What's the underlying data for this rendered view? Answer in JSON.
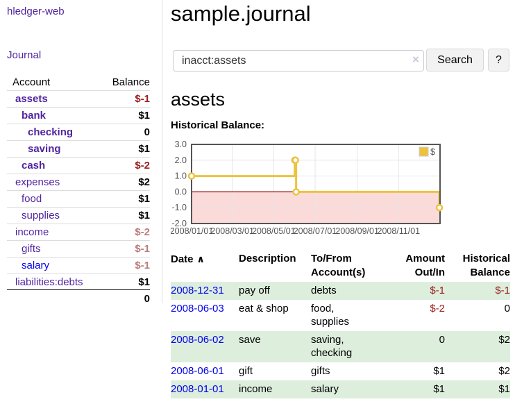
{
  "colors": {
    "link_purple": "#50249f",
    "link_blue": "#0000ee",
    "negative_strong": "#9b1c1c",
    "negative_soft": "#bb7b7b",
    "row_green": "#ddeedd",
    "series_gold": "#edc240"
  },
  "sidebar": {
    "app_title": "hledger-web",
    "nav": {
      "journal": "Journal"
    },
    "accounts": {
      "headers": {
        "account": "Account",
        "balance": "Balance"
      },
      "rows": [
        {
          "label": "assets",
          "balance": "$-1",
          "level": 1,
          "bold": true,
          "balance_tone": "neg-strong"
        },
        {
          "label": "bank",
          "balance": "$1",
          "level": 2,
          "bold": true
        },
        {
          "label": "checking",
          "balance": "0",
          "level": 3,
          "bold": true
        },
        {
          "label": "saving",
          "balance": "$1",
          "level": 3,
          "bold": true
        },
        {
          "label": "cash",
          "balance": "$-2",
          "level": 2,
          "bold": true,
          "balance_tone": "neg-strong"
        },
        {
          "label": "expenses",
          "balance": "$2",
          "level": 1
        },
        {
          "label": "food",
          "balance": "$1",
          "level": 2
        },
        {
          "label": "supplies",
          "balance": "$1",
          "level": 2
        },
        {
          "label": "income",
          "balance": "$-2",
          "level": 1,
          "balance_tone": "neg-soft"
        },
        {
          "label": "gifts",
          "balance": "$-1",
          "level": 2,
          "balance_tone": "neg-soft"
        },
        {
          "label": "salary",
          "balance": "$-1",
          "level": 2,
          "balance_tone": "neg-soft",
          "label_color": "blue"
        },
        {
          "label": "liabilities:debts",
          "balance": "$1",
          "level": 1,
          "section_end": true
        }
      ],
      "total": "0"
    }
  },
  "main": {
    "page_title": "sample.journal",
    "search": {
      "value": "inacct:assets",
      "clear_icon": "×",
      "search_button": "Search",
      "help_button": "?"
    },
    "account_heading": "assets",
    "section_label": "Historical Balance:"
  },
  "chart_data": {
    "type": "line",
    "step": true,
    "title": "Historical Balance",
    "series": [
      {
        "name": "$",
        "color": "#edc240",
        "points": [
          [
            "2008-01-01",
            1
          ],
          [
            "2008-06-01",
            2
          ],
          [
            "2008-06-02",
            2
          ],
          [
            "2008-06-03",
            0
          ],
          [
            "2008-12-31",
            -1
          ]
        ]
      }
    ],
    "x_domain": [
      "2008-01-01",
      "2009-01-01"
    ],
    "xticks": [
      "2008/01/01",
      "2008/03/01",
      "2008/05/01",
      "2008/07/01",
      "2008/09/01",
      "2008/11/01"
    ],
    "yticks": [
      "3.0",
      "2.0",
      "1.0",
      "0.0",
      "-1.0",
      "-2.0"
    ],
    "ylim": [
      -2,
      3
    ],
    "legend": "$",
    "legend_position": "top-right",
    "grid": true,
    "negative_region_color": "#fbdada",
    "zero_line_color": "#8b0000",
    "border_color": "#545454",
    "grid_color": "#e6e6e6"
  },
  "register": {
    "headers": {
      "date": "Date",
      "description": "Description",
      "accounts": "To/From Account(s)",
      "amount": "Amount Out/In",
      "balance": "Historical Balance"
    },
    "sort_icon": "∧",
    "rows": [
      {
        "date": "2008-12-31",
        "description": "pay off",
        "accounts": "debts",
        "amount": "$-1",
        "amount_neg": true,
        "balance": "$-1",
        "balance_neg": true
      },
      {
        "date": "2008-06-03",
        "description": "eat & shop",
        "accounts": "food, supplies",
        "amount": "$-2",
        "amount_neg": true,
        "balance": "0"
      },
      {
        "date": "2008-06-02",
        "description": "save",
        "accounts": "saving, checking",
        "amount": "0",
        "balance": "$2"
      },
      {
        "date": "2008-06-01",
        "description": "gift",
        "accounts": "gifts",
        "amount": "$1",
        "balance": "$2"
      },
      {
        "date": "2008-01-01",
        "description": "income",
        "accounts": "salary",
        "amount": "$1",
        "balance": "$1"
      }
    ]
  }
}
